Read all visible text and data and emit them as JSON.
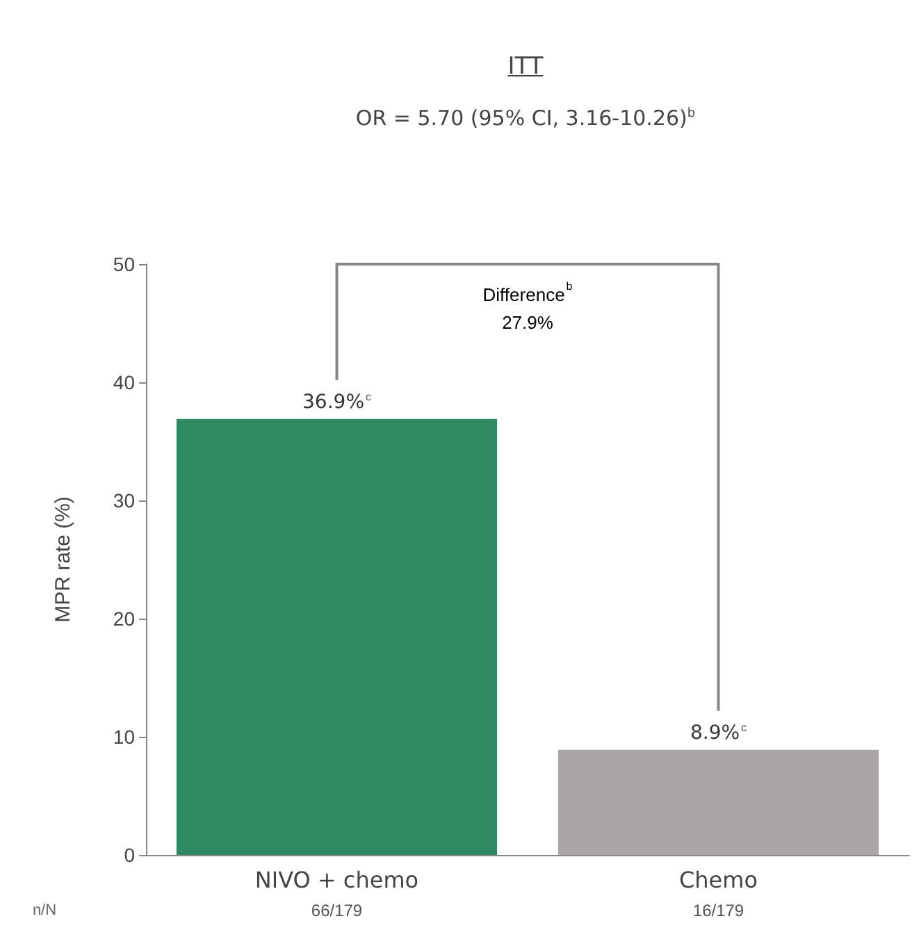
{
  "chart_data": {
    "type": "bar",
    "title": "ITT",
    "subtitle": "OR = 5.70 (95% CI, 3.16-10.26)$^{b}$",
    "ylabel": "MPR rate (%)",
    "categories": [
      "NIVO + chemo",
      "Chemo"
    ],
    "values": [
      36.9,
      8.9
    ],
    "colors": [
      "#2e8a62",
      "#a9a5a5"
    ],
    "value_labels": [
      "36.9%$^{c}$",
      "8.9%$^{c}$"
    ],
    "ylim": [
      0,
      50
    ],
    "yticks": [
      0,
      10,
      20,
      30,
      40,
      50
    ],
    "grid": false,
    "annotations": [
      "Difference$^{b}$",
      "27.9%",
      "n/N",
      "66/179",
      "16/179"
    ]
  }
}
